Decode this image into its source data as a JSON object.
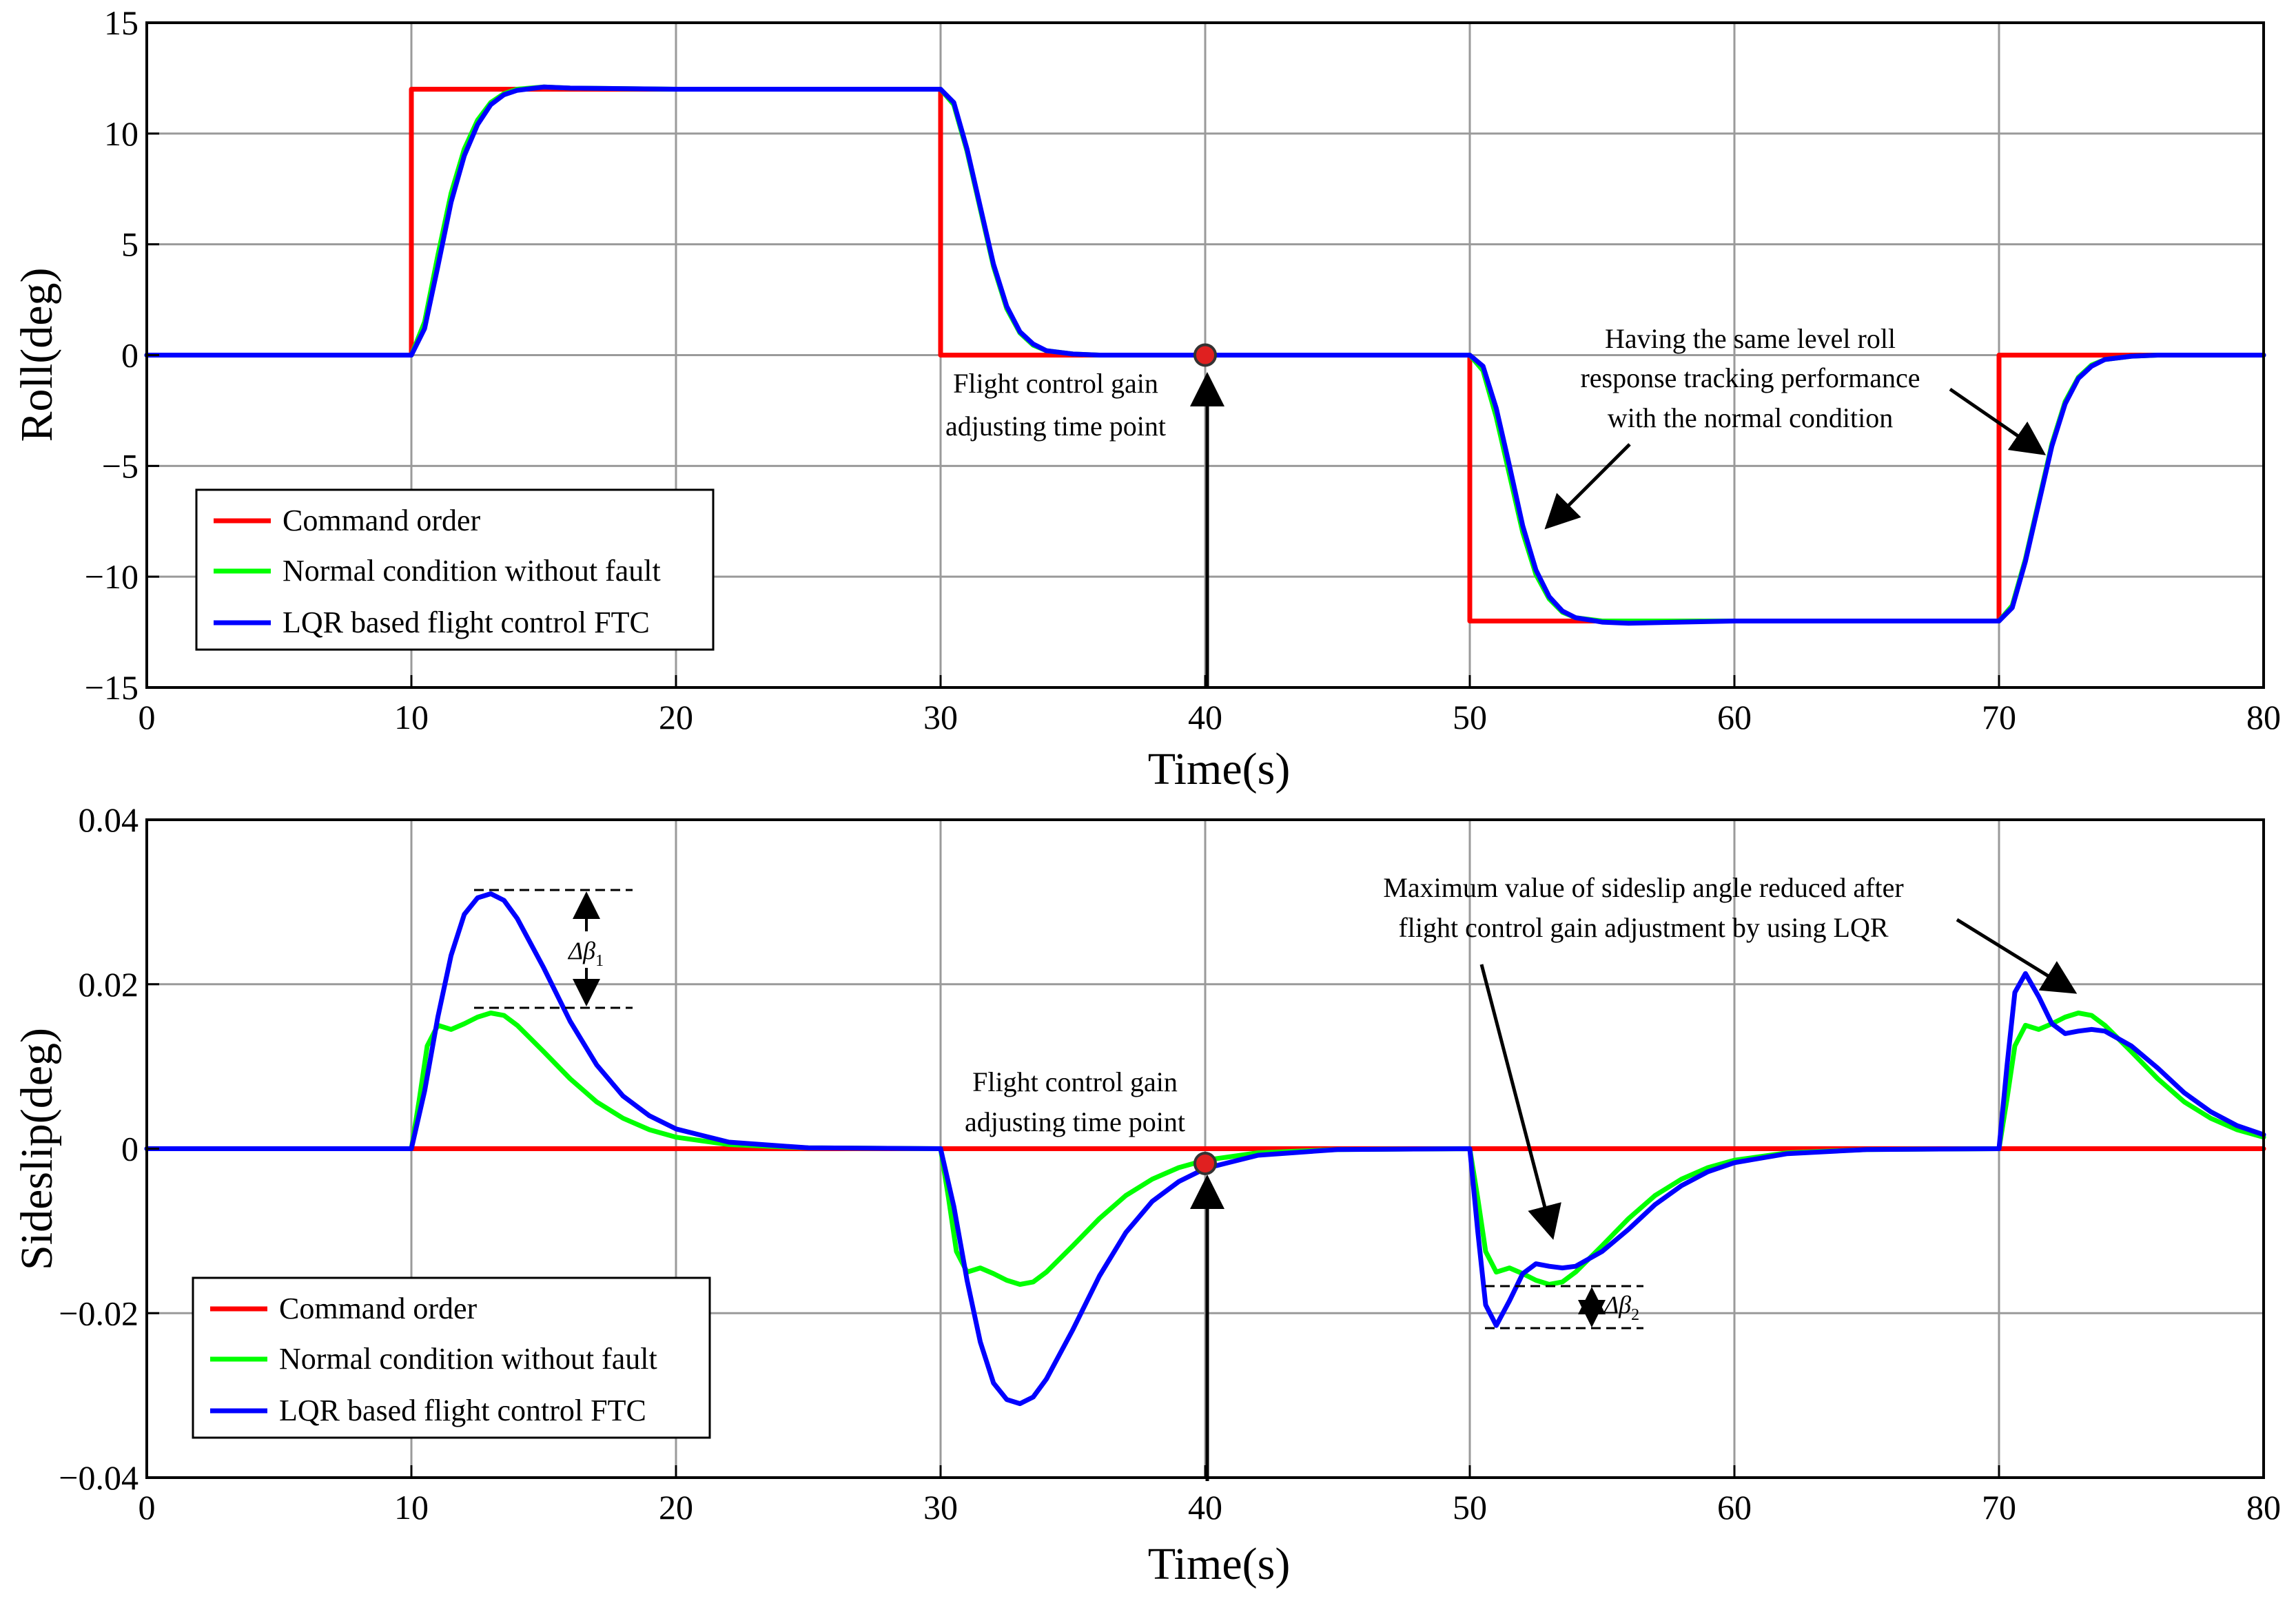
{
  "chart_data": [
    {
      "type": "line",
      "id": "roll",
      "xlabel": "Time(s)",
      "ylabel": "Roll(deg)",
      "xlim": [
        0,
        80
      ],
      "ylim": [
        -15,
        15
      ],
      "xticks": [
        0,
        10,
        20,
        30,
        40,
        50,
        60,
        70,
        80
      ],
      "yticks": [
        -15,
        -10,
        -5,
        0,
        5,
        10,
        15
      ],
      "ytick_labels": [
        "−15",
        "−10",
        "−5",
        "0",
        "5",
        "10",
        "15"
      ],
      "grid": true,
      "legend": "bottom-left",
      "series": [
        {
          "name": "Command order",
          "color": "#ff0000",
          "x": [
            0,
            10,
            10,
            30,
            30,
            50,
            50,
            70,
            70,
            80
          ],
          "y": [
            0,
            0,
            12,
            12,
            0,
            0,
            -12,
            -12,
            0,
            0
          ]
        },
        {
          "name": "Normal condition without fault",
          "color": "#00ff00",
          "x": [
            0,
            10,
            10.5,
            11,
            11.5,
            12,
            12.5,
            13,
            13.5,
            14,
            15,
            16,
            20,
            30,
            30.5,
            31,
            31.5,
            32,
            32.5,
            33,
            33.5,
            34,
            35,
            36,
            40,
            50,
            50.5,
            51,
            51.5,
            52,
            52.5,
            53,
            53.5,
            54,
            55,
            56,
            60,
            70,
            70.5,
            71,
            71.5,
            72,
            72.5,
            73,
            73.5,
            74,
            75,
            76,
            80
          ],
          "y": [
            0,
            0,
            1.5,
            4.5,
            7.3,
            9.3,
            10.6,
            11.4,
            11.8,
            12.0,
            12.1,
            12.05,
            12,
            12,
            11.3,
            9.2,
            6.6,
            4.0,
            2.1,
            1.0,
            0.45,
            0.2,
            0.05,
            0,
            0,
            0,
            -0.7,
            -2.8,
            -5.4,
            -8.0,
            -9.9,
            -11.0,
            -11.6,
            -11.85,
            -12.0,
            -12.0,
            -12,
            -12,
            -11.3,
            -9.2,
            -6.6,
            -4.0,
            -2.1,
            -1.0,
            -0.45,
            -0.2,
            -0.05,
            0,
            0
          ]
        },
        {
          "name": "LQR based flight control FTC",
          "color": "#0000ff",
          "x": [
            0,
            10,
            10.5,
            11,
            11.5,
            12,
            12.5,
            13,
            13.5,
            14,
            15,
            16,
            20,
            30,
            30.5,
            31,
            31.5,
            32,
            32.5,
            33,
            33.5,
            34,
            35,
            36,
            40,
            50,
            50.5,
            51,
            51.5,
            52,
            52.5,
            53,
            53.5,
            54,
            55,
            56,
            60,
            70,
            70.5,
            71,
            71.5,
            72,
            72.5,
            73,
            73.5,
            74,
            75,
            76,
            80
          ],
          "y": [
            0,
            0,
            1.2,
            4.0,
            6.9,
            9.0,
            10.4,
            11.3,
            11.75,
            11.95,
            12.1,
            12.05,
            12,
            12,
            11.4,
            9.3,
            6.7,
            4.1,
            2.2,
            1.05,
            0.5,
            0.2,
            0.05,
            0,
            0,
            0,
            -0.5,
            -2.4,
            -5.0,
            -7.7,
            -9.7,
            -10.9,
            -11.55,
            -11.85,
            -12.05,
            -12.1,
            -12,
            -12,
            -11.4,
            -9.3,
            -6.7,
            -4.1,
            -2.2,
            -1.05,
            -0.5,
            -0.2,
            -0.05,
            0,
            0
          ]
        }
      ],
      "marker": {
        "x": 40,
        "y": 0,
        "color": "#e02020"
      },
      "annotations": [
        {
          "lines": [
            "Flight control gain",
            "adjusting  time point"
          ]
        },
        {
          "lines": [
            "Having the same level roll",
            "response tracking performance",
            "with the normal condition"
          ]
        }
      ]
    },
    {
      "type": "line",
      "id": "sideslip",
      "xlabel": "Time(s)",
      "ylabel": "Sideslip(deg)",
      "xlim": [
        0,
        80
      ],
      "ylim": [
        -0.04,
        0.04
      ],
      "xticks": [
        0,
        10,
        20,
        30,
        40,
        50,
        60,
        70,
        80
      ],
      "yticks": [
        -0.04,
        -0.02,
        0,
        0.02,
        0.04
      ],
      "ytick_labels": [
        "−0.04",
        "−0.02",
        "0",
        "0.02",
        "0.04"
      ],
      "grid": true,
      "legend": "bottom-left",
      "series": [
        {
          "name": "Command order",
          "color": "#ff0000",
          "x": [
            0,
            80
          ],
          "y": [
            0,
            0
          ]
        },
        {
          "name": "Normal condition without fault",
          "color": "#00ff00",
          "x": [
            0,
            10,
            10.3,
            10.6,
            11,
            11.5,
            12,
            12.5,
            13,
            13.5,
            14,
            15,
            16,
            17,
            18,
            19,
            20,
            22,
            25,
            30,
            30.3,
            30.6,
            31,
            31.5,
            32,
            32.5,
            33,
            33.5,
            34,
            35,
            36,
            37,
            38,
            39,
            40,
            42,
            45,
            50,
            50.3,
            50.6,
            51,
            51.5,
            52,
            52.5,
            53,
            53.5,
            54,
            55,
            56,
            57,
            58,
            59,
            60,
            62,
            65,
            70,
            70.3,
            70.6,
            71,
            71.5,
            72,
            72.5,
            73,
            73.5,
            74,
            75,
            76,
            77,
            78,
            79,
            80
          ],
          "y": [
            0,
            0,
            0.006,
            0.0125,
            0.015,
            0.0145,
            0.0152,
            0.016,
            0.0165,
            0.0162,
            0.015,
            0.0118,
            0.0085,
            0.0057,
            0.0037,
            0.0023,
            0.0014,
            0.0005,
            0.0001,
            0,
            -0.006,
            -0.0125,
            -0.015,
            -0.0145,
            -0.0152,
            -0.016,
            -0.0165,
            -0.0162,
            -0.015,
            -0.0118,
            -0.0085,
            -0.0057,
            -0.0037,
            -0.0023,
            -0.0014,
            -0.0005,
            -0.0001,
            0,
            -0.006,
            -0.0125,
            -0.015,
            -0.0145,
            -0.0152,
            -0.016,
            -0.0165,
            -0.0162,
            -0.015,
            -0.0118,
            -0.0085,
            -0.0057,
            -0.0037,
            -0.0023,
            -0.0014,
            -0.0005,
            -0.0001,
            0,
            0.006,
            0.0125,
            0.015,
            0.0145,
            0.0152,
            0.016,
            0.0165,
            0.0162,
            0.015,
            0.0118,
            0.0085,
            0.0057,
            0.0037,
            0.0023,
            0.0014
          ]
        },
        {
          "name": "LQR based flight control FTC",
          "color": "#0000ff",
          "x": [
            0,
            10,
            10.5,
            11,
            11.5,
            12,
            12.5,
            13,
            13.5,
            14,
            15,
            16,
            17,
            18,
            19,
            20,
            22,
            25,
            30,
            30.5,
            31,
            31.5,
            32,
            32.5,
            33,
            33.5,
            34,
            35,
            36,
            37,
            38,
            39,
            40,
            42,
            45,
            50,
            50.3,
            50.6,
            51,
            51.5,
            52,
            52.5,
            53,
            53.5,
            54,
            55,
            56,
            57,
            58,
            59,
            60,
            62,
            65,
            70,
            70.3,
            70.6,
            71,
            71.5,
            72,
            72.5,
            73,
            73.5,
            74,
            75,
            76,
            77,
            78,
            79,
            80
          ],
          "y": [
            0,
            0,
            0.007,
            0.016,
            0.0235,
            0.0285,
            0.0305,
            0.031,
            0.0302,
            0.028,
            0.022,
            0.0155,
            0.0102,
            0.0064,
            0.004,
            0.0024,
            0.0008,
            0.0001,
            0,
            -0.007,
            -0.016,
            -0.0235,
            -0.0285,
            -0.0305,
            -0.031,
            -0.0302,
            -0.028,
            -0.022,
            -0.0155,
            -0.0102,
            -0.0064,
            -0.004,
            -0.0024,
            -0.0008,
            -0.0001,
            0,
            -0.01,
            -0.019,
            -0.0215,
            -0.0185,
            -0.0152,
            -0.014,
            -0.0143,
            -0.0145,
            -0.0143,
            -0.0125,
            -0.0098,
            -0.0068,
            -0.0045,
            -0.0028,
            -0.0017,
            -0.0006,
            -0.0001,
            0,
            0.01,
            0.019,
            0.0213,
            0.0185,
            0.0152,
            0.014,
            0.0143,
            0.0145,
            0.0143,
            0.0125,
            0.0098,
            0.0068,
            0.0045,
            0.0028,
            0.0017
          ]
        }
      ],
      "marker": {
        "x": 40,
        "y": -0.0018,
        "color": "#e02020"
      },
      "annotations": [
        {
          "lines": [
            "Flight control gain",
            "adjusting  time point"
          ]
        },
        {
          "lines": [
            "Maximum value of sideslip angle reduced after",
            "flight control gain adjustment by using LQR"
          ]
        },
        {
          "label": "Δβ",
          "subscript": "1"
        },
        {
          "label": "Δβ",
          "subscript": "2"
        }
      ]
    }
  ]
}
